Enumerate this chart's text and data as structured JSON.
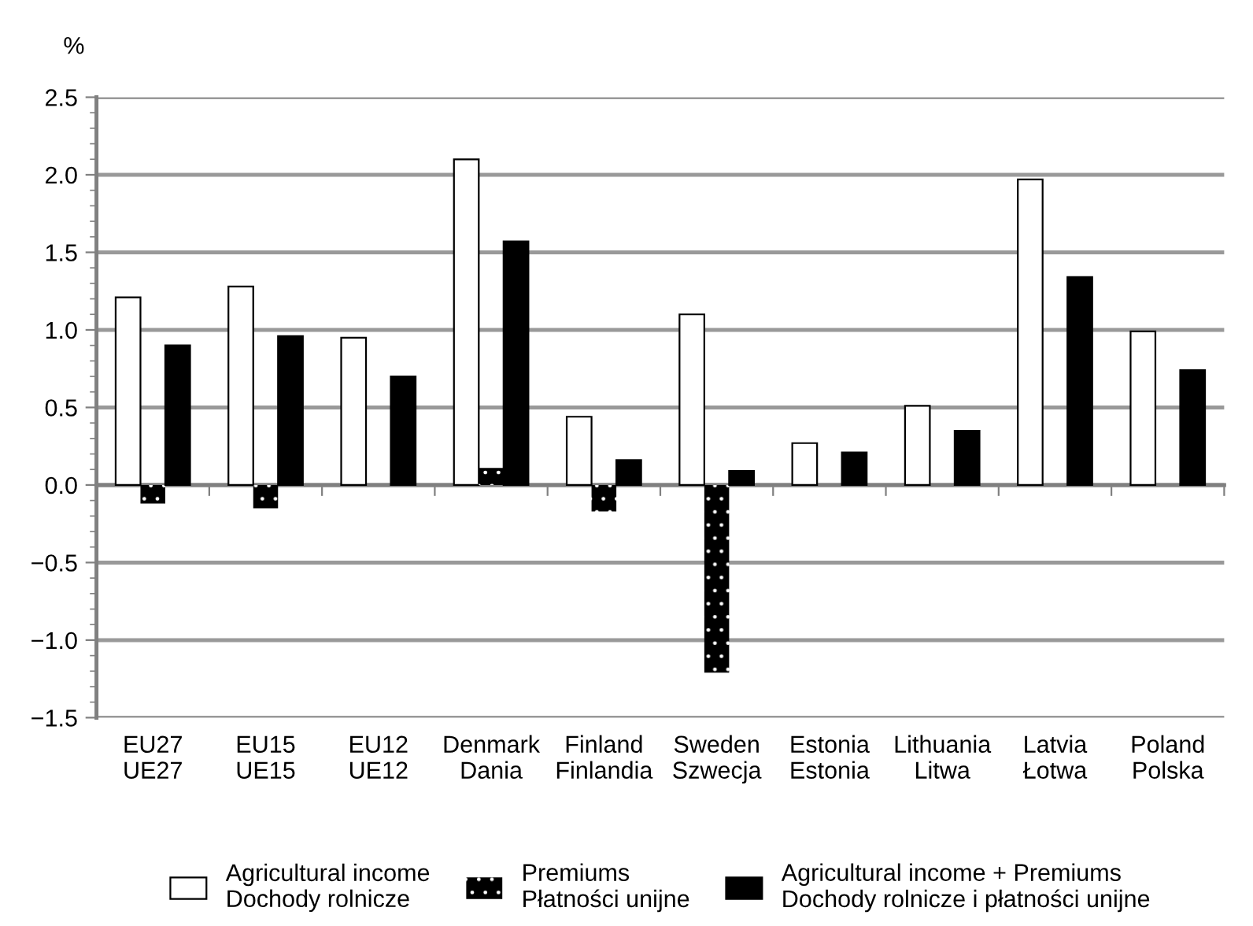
{
  "chart_data": {
    "type": "bar",
    "ylabel": "%",
    "categories": [
      "EU27\nUE27",
      "EU15\nUE15",
      "EU12\nUE12",
      "Denmark\nDania",
      "Finland\nFinlandia",
      "Sweden\nSzwecja",
      "Estonia\nEstonia",
      "Lithuania\nLitwa",
      "Latvia\nŁotwa",
      "Poland\nPolska"
    ],
    "series": [
      {
        "name": "Agricultural income\nDochody rolnicze",
        "color": "#ffffff",
        "values": [
          1.21,
          1.28,
          0.95,
          2.1,
          0.44,
          1.1,
          0.27,
          0.51,
          1.97,
          0.99
        ]
      },
      {
        "name": "Premiums\nPłatności unijne",
        "color": "#000000",
        "values": [
          -0.12,
          -0.15,
          null,
          0.11,
          -0.17,
          -1.21,
          null,
          null,
          null,
          null
        ]
      },
      {
        "name": "Agricultural income + Premiums\nDochody rolnicze i płatności unijne",
        "color": "#000000",
        "values": [
          0.9,
          0.96,
          0.7,
          1.57,
          0.16,
          0.09,
          0.21,
          0.35,
          1.34,
          0.74
        ]
      }
    ],
    "ylim": [
      -1.5,
      2.5
    ],
    "yticks": [
      {
        "value": -1.5,
        "label": "−1.5"
      },
      {
        "value": -1.0,
        "label": "−1.0"
      },
      {
        "value": -0.5,
        "label": "−0.5"
      },
      {
        "value": 0,
        "label": "0.0"
      },
      {
        "value": 0.5,
        "label": "0.5"
      },
      {
        "value": 1.0,
        "label": "1.0"
      },
      {
        "value": 1.5,
        "label": "1.5"
      },
      {
        "value": 2.0,
        "label": "2.0"
      },
      {
        "value": 2.5,
        "label": "2.5"
      }
    ],
    "grid": "y",
    "legend": "bottom"
  }
}
